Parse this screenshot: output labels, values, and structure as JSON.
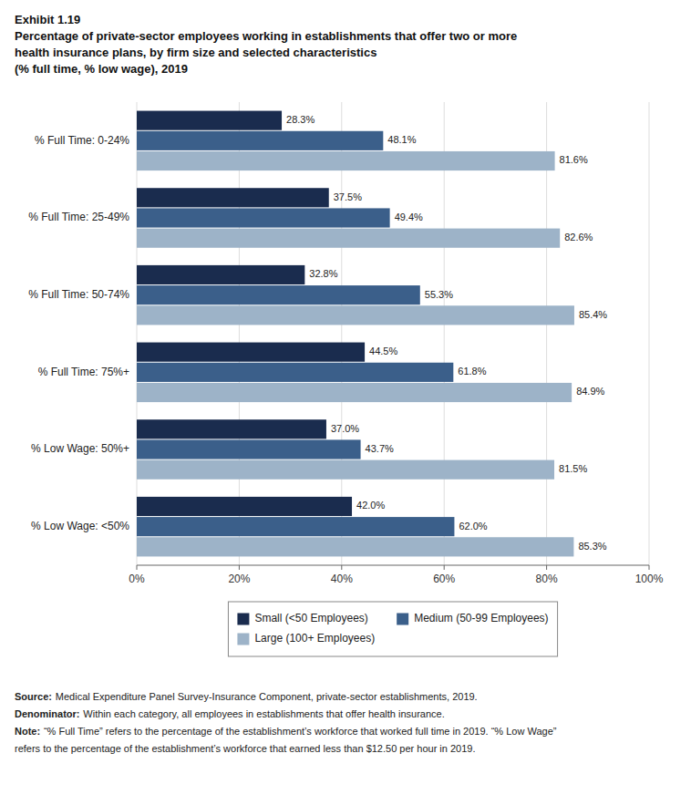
{
  "chart_data": {
    "type": "bar",
    "orientation": "horizontal",
    "title": [
      "Exhibit 1.19",
      "Percentage of private-sector employees working in establishments that offer two or more",
      "health insurance plans, by firm size and selected characteristics",
      "(% full time, % low wage), 2019"
    ],
    "categories": [
      "% Full Time: 0-24%",
      "% Full Time: 25-49%",
      "% Full Time: 50-74%",
      "% Full Time: 75%+",
      "% Low Wage: 50%+",
      "% Low Wage: <50%"
    ],
    "series": [
      {
        "name": "Small (<50 Employees)",
        "color": "#1a2c4e",
        "values": [
          28.3,
          37.5,
          32.8,
          44.5,
          37.0,
          42.0
        ],
        "value_labels": [
          "28.3%",
          "37.5%",
          "32.8%",
          "44.5%",
          "37.0%",
          "42.0%"
        ]
      },
      {
        "name": "Medium (50-99 Employees)",
        "color": "#3b5f8a",
        "values": [
          48.1,
          49.4,
          55.3,
          61.8,
          43.7,
          62.0
        ],
        "value_labels": [
          "48.1%",
          "49.4%",
          "55.3%",
          "61.8%",
          "43.7%",
          "62.0%"
        ]
      },
      {
        "name": "Large (100+ Employees)",
        "color": "#9db3c8",
        "values": [
          81.6,
          82.6,
          85.4,
          84.9,
          81.5,
          85.3
        ],
        "value_labels": [
          "81.6%",
          "82.6%",
          "85.4%",
          "84.9%",
          "81.5%",
          "85.3%"
        ]
      }
    ],
    "xlim": [
      0,
      100
    ],
    "xticks": [
      {
        "value": 0,
        "label": "0%"
      },
      {
        "value": 20,
        "label": "20%"
      },
      {
        "value": 40,
        "label": "40%"
      },
      {
        "value": 60,
        "label": "60%"
      },
      {
        "value": 80,
        "label": "80%"
      },
      {
        "value": 100,
        "label": "100%"
      }
    ],
    "grid": true,
    "legend": "bottom",
    "data_labels": true,
    "annotations": [
      {
        "lead": "Source:",
        "lines": [
          "Medical Expenditure Panel Survey-Insurance Component, private-sector establishments, 2019."
        ]
      },
      {
        "lead": "Denominator:",
        "lines": [
          "Within each category, all employees in establishments that offer health insurance."
        ]
      },
      {
        "lead": "Note:",
        "lines": [
          "“% Full Time” refers to the percentage of the establishment’s workforce that worked full time in 2019. “% Low Wage”",
          "refers to the percentage of the establishment’s workforce that earned less than $12.50 per hour in 2019."
        ]
      }
    ]
  }
}
